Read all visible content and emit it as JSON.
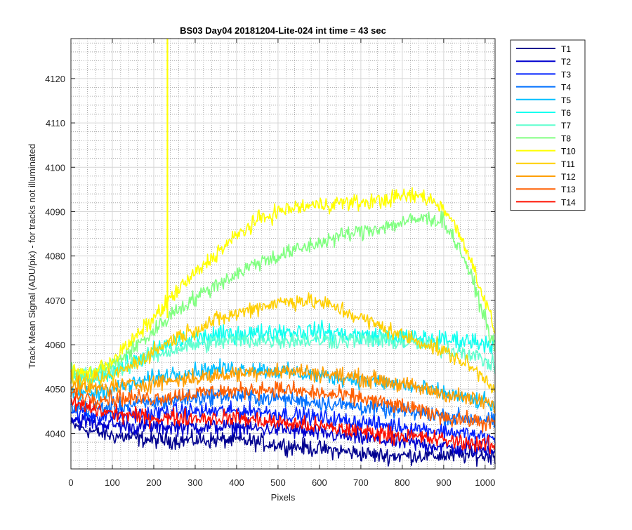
{
  "chart_data": {
    "type": "line",
    "title": "BS03 Day04 20181204-Lite-024 int time = 43 sec",
    "xlabel": "Pixels",
    "ylabel": "Track Mean Signal (ADU/pix) - for tracks not illuminated",
    "xlim": [
      0,
      1024
    ],
    "ylim": [
      4032,
      4129
    ],
    "x_ticks": [
      0,
      100,
      200,
      300,
      400,
      500,
      600,
      700,
      800,
      900,
      1000
    ],
    "y_ticks": [
      4040,
      4050,
      4060,
      4070,
      4080,
      4090,
      4100,
      4110,
      4120
    ],
    "grid": true,
    "minor_grid": true,
    "legend_position": "outside-right",
    "x": [
      0,
      50,
      100,
      150,
      200,
      250,
      300,
      350,
      400,
      450,
      500,
      550,
      600,
      650,
      700,
      750,
      800,
      850,
      900,
      950,
      1000,
      1024
    ],
    "series": [
      {
        "name": "T1",
        "color": "#00008F",
        "noise": 1.6,
        "values": [
          4042,
          4040.5,
          4039.5,
          4039,
          4038.5,
          4038.5,
          4038.5,
          4038.5,
          4038.5,
          4038,
          4037.5,
          4037,
          4036.5,
          4036,
          4035.5,
          4035,
          4035,
          4035,
          4035,
          4035,
          4035,
          4035
        ]
      },
      {
        "name": "T2",
        "color": "#0000CF",
        "noise": 1.6,
        "values": [
          4043.5,
          4042.5,
          4042,
          4041.5,
          4041.5,
          4041.5,
          4041.5,
          4041.5,
          4041.5,
          4041,
          4041,
          4040.5,
          4040,
          4039.5,
          4039,
          4038.5,
          4038,
          4037.5,
          4037,
          4036.5,
          4036.5,
          4036.5
        ]
      },
      {
        "name": "T3",
        "color": "#0020FF",
        "noise": 1.6,
        "values": [
          4045,
          4044,
          4044,
          4044,
          4044.5,
          4045,
          4045,
          4045,
          4045,
          4045,
          4044.5,
          4044,
          4043.5,
          4043,
          4042.5,
          4042,
          4041.5,
          4041,
          4040.5,
          4040,
          4039,
          4038.5
        ]
      },
      {
        "name": "T4",
        "color": "#0070FF",
        "noise": 1.6,
        "values": [
          4046,
          4045.5,
          4046,
          4046.5,
          4047,
          4047.5,
          4048,
          4048.5,
          4048.5,
          4048,
          4048,
          4047.5,
          4047,
          4046.5,
          4046,
          4045.5,
          4045,
          4044.5,
          4044,
          4043.5,
          4043,
          4042.5
        ]
      },
      {
        "name": "T5",
        "color": "#00BFFF",
        "noise": 1.6,
        "values": [
          4049,
          4049,
          4050,
          4051,
          4052.5,
          4053.5,
          4054,
          4054.5,
          4054.5,
          4054.5,
          4054,
          4053.5,
          4053,
          4052.5,
          4052,
          4051.5,
          4051,
          4050,
          4049,
          4048,
          4047,
          4046
        ]
      },
      {
        "name": "T6",
        "color": "#10FFEF",
        "noise": 1.8,
        "values": [
          4052,
          4052,
          4054,
          4056,
          4058.5,
          4060.5,
          4061.5,
          4062,
          4062.5,
          4062.5,
          4063,
          4063,
          4063,
          4062.5,
          4062,
          4062,
          4061.5,
          4061.5,
          4061,
          4061,
          4060.5,
          4060
        ]
      },
      {
        "name": "T7",
        "color": "#5FFFCF",
        "noise": 1.6,
        "values": [
          4053,
          4053,
          4054,
          4056,
          4057.5,
          4059,
          4060,
          4060.5,
          4061,
          4061,
          4061,
          4061,
          4061,
          4061,
          4061,
          4061,
          4060.5,
          4060,
          4059,
          4058.5,
          4056.5,
          4055
        ]
      },
      {
        "name": "T8",
        "color": "#80FF80",
        "noise": 1.6,
        "values": [
          4053.5,
          4053.5,
          4055.5,
          4059,
          4063,
          4067.5,
          4070.5,
          4073.5,
          4076,
          4078.5,
          4080,
          4081.5,
          4083,
          4084.5,
          4085.5,
          4086.5,
          4087.5,
          4088.5,
          4088,
          4079.5,
          4066,
          4058.5
        ]
      },
      {
        "name": "T10",
        "color": "#FFFF00",
        "noise": 1.6,
        "values": [
          4054,
          4053.5,
          4056.5,
          4061,
          4066,
          4071.5,
          4076,
          4080.5,
          4084.5,
          4088,
          4090,
          4091,
          4091.5,
          4092,
          4092,
          4092.5,
          4093.5,
          4093.5,
          4091,
          4083,
          4070,
          4063
        ]
      },
      {
        "name": "T11",
        "color": "#FFCF00",
        "noise": 1.6,
        "values": [
          4052,
          4051.5,
          4053,
          4055.5,
          4058.5,
          4061.5,
          4063.5,
          4065.5,
          4067,
          4068.5,
          4069.5,
          4070,
          4069.5,
          4068,
          4066,
          4064,
          4062,
          4060.5,
          4058.5,
          4056,
          4052.5,
          4050
        ]
      },
      {
        "name": "T12",
        "color": "#FF9F00",
        "noise": 1.6,
        "values": [
          4050.5,
          4050,
          4050.5,
          4051,
          4051.5,
          4052,
          4052.5,
          4053,
          4053.5,
          4054,
          4054,
          4054,
          4053.5,
          4053,
          4052.5,
          4052,
          4051,
          4050,
          4049,
          4048,
          4047,
          4046
        ]
      },
      {
        "name": "T13",
        "color": "#FF5F00",
        "noise": 1.6,
        "values": [
          4049,
          4048,
          4048,
          4048,
          4048,
          4048.5,
          4049,
          4049.5,
          4049.5,
          4050,
          4050,
          4049.5,
          4049,
          4048.5,
          4048,
          4047,
          4046,
          4045,
          4044,
          4043,
          4042.5,
          4042
        ]
      },
      {
        "name": "T14",
        "color": "#FF1000",
        "noise": 1.6,
        "values": [
          4047,
          4045.5,
          4044.5,
          4044,
          4043.5,
          4043.5,
          4043.5,
          4043.5,
          4043.5,
          4043,
          4042.5,
          4042,
          4041.5,
          4041,
          4040.5,
          4040,
          4039.5,
          4039,
          4038.5,
          4038,
          4037.5,
          4037
        ]
      }
    ],
    "annotations": [
      {
        "type": "spike",
        "series": "T10",
        "x": 233,
        "y_from": 4066,
        "y_to": 4129
      }
    ]
  }
}
